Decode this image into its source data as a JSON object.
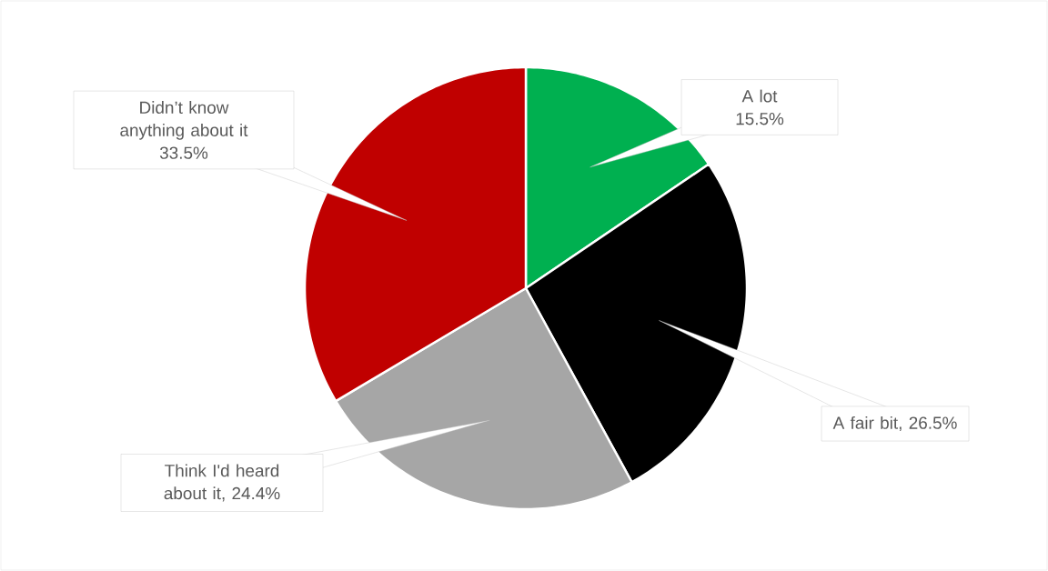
{
  "chart_data": {
    "type": "pie",
    "categories": [
      "A lot",
      "A fair bit",
      "Think I'd heard about it",
      "Didn’t know anything about it"
    ],
    "values": [
      15.5,
      26.5,
      24.4,
      33.5
    ],
    "value_labels": [
      "15.5%",
      ", 26.5%",
      ", 24.4%",
      "33.5%"
    ],
    "colors": [
      "#00b050",
      "#000000",
      "#a6a6a6",
      "#c00000"
    ]
  }
}
